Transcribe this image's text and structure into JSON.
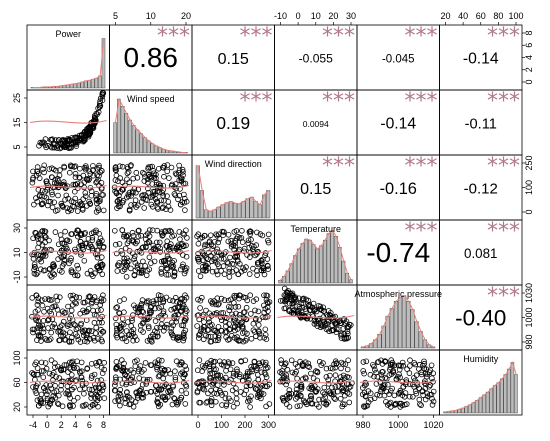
{
  "chart_data": {
    "type": "scatter",
    "subtype": "correlation-matrix",
    "variables": [
      "Power",
      "Wind speed",
      "Wind direction",
      "Temperature",
      "Atmospheric pressure",
      "Humidity"
    ],
    "ticks": {
      "Power": [
        "-4",
        "0",
        "2",
        "4",
        "6",
        "8"
      ],
      "Wind speed": [
        "5",
        "10",
        "20"
      ],
      "Wind direction": [
        "0",
        "100",
        "200",
        "300"
      ],
      "Temperature": [
        "-10",
        "0",
        "10",
        "20",
        "30"
      ],
      "Atmospheric pressure": [
        "980",
        "1000",
        "1020"
      ],
      "Humidity": [
        "20",
        "40",
        "60",
        "80",
        "100"
      ]
    },
    "right_ticks": {
      "Power": [
        "0",
        "2",
        "4",
        "6",
        "8"
      ],
      "Wind direction": [
        "0",
        "100",
        "250"
      ],
      "Atmospheric pressure": [
        "980",
        "1000",
        "1030"
      ]
    },
    "left_ticks": {
      "Wind speed": [
        "5",
        "15",
        "25"
      ],
      "Temperature": [
        "-10",
        "10",
        "30"
      ],
      "Humidity": [
        "20",
        "60",
        "100"
      ]
    },
    "correlations": [
      {
        "row": 0,
        "col": 1,
        "r": "0.86",
        "stars": "***"
      },
      {
        "row": 0,
        "col": 2,
        "r": "0.15",
        "stars": "***"
      },
      {
        "row": 0,
        "col": 3,
        "r": "-0.055",
        "stars": "***"
      },
      {
        "row": 0,
        "col": 4,
        "r": "-0.045",
        "stars": "***"
      },
      {
        "row": 0,
        "col": 5,
        "r": "-0.14",
        "stars": "***"
      },
      {
        "row": 1,
        "col": 2,
        "r": "0.19",
        "stars": "***"
      },
      {
        "row": 1,
        "col": 3,
        "r": "0.0094",
        "stars": "***"
      },
      {
        "row": 1,
        "col": 4,
        "r": "-0.14",
        "stars": "***"
      },
      {
        "row": 1,
        "col": 5,
        "r": "-0.11",
        "stars": "***"
      },
      {
        "row": 2,
        "col": 3,
        "r": "0.15",
        "stars": "***"
      },
      {
        "row": 2,
        "col": 4,
        "r": "-0.16",
        "stars": "***"
      },
      {
        "row": 2,
        "col": 5,
        "r": "-0.12",
        "stars": "***"
      },
      {
        "row": 3,
        "col": 4,
        "r": "-0.74",
        "stars": "***"
      },
      {
        "row": 3,
        "col": 5,
        "r": "0.081",
        "stars": "***"
      },
      {
        "row": 4,
        "col": 5,
        "r": "-0.40",
        "stars": "***"
      }
    ],
    "histograms": {
      "Power": [
        0.01,
        0.01,
        0.01,
        0.02,
        0.02,
        0.02,
        0.03,
        0.03,
        0.04,
        0.05,
        0.06,
        0.07,
        0.08,
        0.09,
        0.11,
        0.13,
        0.14,
        0.16,
        0.18,
        0.22,
        0.9
      ],
      "Wind speed": [
        0.55,
        0.98,
        0.85,
        0.72,
        0.6,
        0.5,
        0.42,
        0.35,
        0.28,
        0.22,
        0.17,
        0.13,
        0.1,
        0.07,
        0.05,
        0.04,
        0.03,
        0.02,
        0.01,
        0.01
      ],
      "Wind direction": [
        0.95,
        0.5,
        0.15,
        0.12,
        0.15,
        0.2,
        0.24,
        0.28,
        0.3,
        0.27,
        0.26,
        0.3,
        0.35,
        0.38,
        0.3,
        0.24,
        0.42,
        0.5
      ],
      "Temperature": [
        0.05,
        0.12,
        0.22,
        0.35,
        0.5,
        0.62,
        0.72,
        0.8,
        0.78,
        0.7,
        0.62,
        0.68,
        0.78,
        0.9,
        0.95,
        0.85,
        0.65,
        0.4,
        0.18,
        0.06
      ],
      "Atmospheric pressure": [
        0.02,
        0.04,
        0.08,
        0.15,
        0.25,
        0.4,
        0.58,
        0.72,
        0.85,
        0.92,
        0.95,
        0.85,
        0.7,
        0.48,
        0.3,
        0.15,
        0.06,
        0.02
      ],
      "Humidity": [
        0.02,
        0.03,
        0.04,
        0.05,
        0.07,
        0.09,
        0.12,
        0.15,
        0.19,
        0.23,
        0.28,
        0.33,
        0.38,
        0.44,
        0.5,
        0.55,
        0.62,
        0.7,
        0.8,
        0.92,
        0.7
      ]
    },
    "colors": {
      "points": "#000000",
      "smooth": "#e8817a",
      "stars": "#b07a8c",
      "bars": "#bdbdbd"
    }
  }
}
